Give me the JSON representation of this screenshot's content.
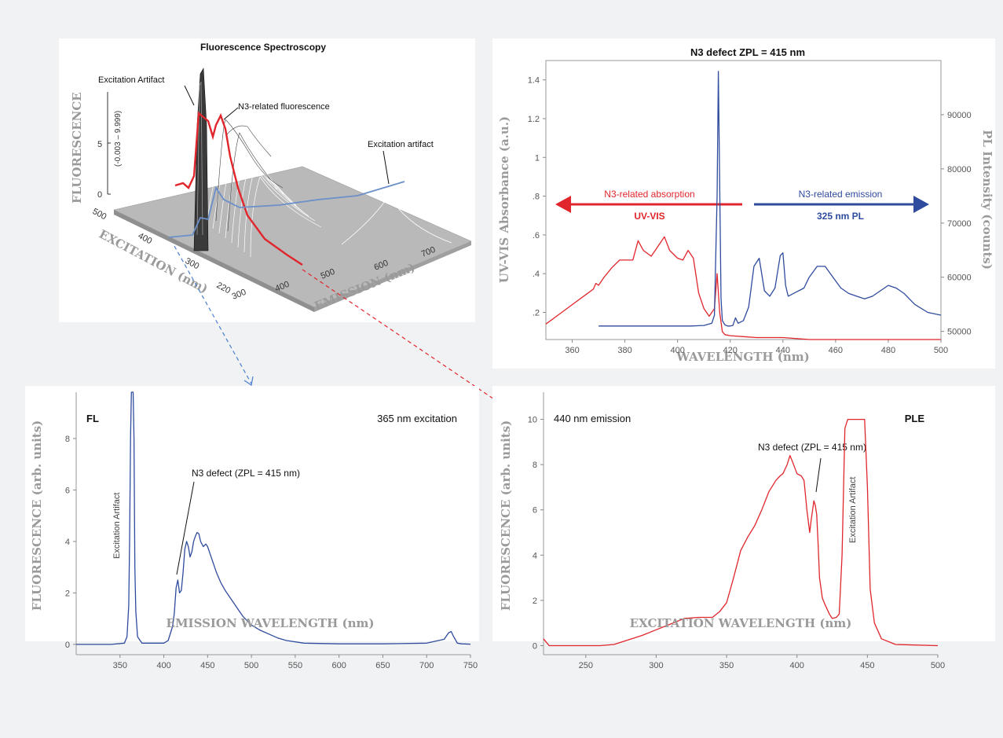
{
  "colors": {
    "red": "#e0262c",
    "blue": "#2f4b9e",
    "grey": "#9a9a9a",
    "arrow_red": "#e0262c",
    "arrow_blue": "#2f4b9e"
  },
  "chart_data": [
    {
      "type": "surface3d",
      "title": "Fluorescence Spectroscopy",
      "zlabel": "FLUORESCENCE",
      "zrange_label": "(-0.003 – 9.999)",
      "zticks": [
        "0",
        "5"
      ],
      "ylabel": "EXCITATION (nm)",
      "yticks": [
        "500",
        "400",
        "300",
        "220"
      ],
      "xlabel": "EMISSION (nm)",
      "xticks": [
        "300",
        "400",
        "500",
        "600",
        "700"
      ],
      "annotations": [
        "Excitation Artifact",
        "N3-related fluorescence",
        "Excitation artifact"
      ]
    },
    {
      "type": "line",
      "title": "N3 defect ZPL = 415 nm",
      "xlabel": "WAVELENGTH (nm)",
      "ylabel": "UV-VIS Absorbance (a.u.)",
      "y2label": "PL Intensity (counts)",
      "xlim": [
        350,
        500
      ],
      "ylim": [
        0.06,
        1.5
      ],
      "y2lim": [
        48500,
        100000
      ],
      "xticks": [
        360,
        380,
        400,
        420,
        440,
        460,
        480,
        500
      ],
      "yticks": [
        ".2",
        ".4",
        ".6",
        ".8",
        "1",
        "1.2",
        "1.4"
      ],
      "ytick_values": [
        0.2,
        0.4,
        0.6,
        0.8,
        1.0,
        1.2,
        1.4
      ],
      "y2ticks": [
        50000,
        60000,
        70000,
        80000,
        90000
      ],
      "left_arrow_label": "N3-related absorption",
      "left_arrow_sublabel": "UV-VIS",
      "right_arrow_label": "N3-related emission",
      "right_arrow_sublabel": "325 nm PL",
      "series": [
        {
          "axis": "left",
          "color": "#e0262c",
          "x": [
            350,
            355,
            360,
            365,
            368,
            369,
            370,
            372,
            375,
            378,
            380,
            383,
            385,
            387,
            390,
            393,
            395,
            397,
            400,
            402,
            404,
            406,
            408,
            410,
            412,
            414,
            415,
            416,
            417,
            418,
            420,
            425,
            430,
            440,
            450,
            460,
            470,
            480,
            490,
            500
          ],
          "y": [
            0.14,
            0.19,
            0.24,
            0.29,
            0.32,
            0.35,
            0.34,
            0.38,
            0.43,
            0.47,
            0.47,
            0.47,
            0.57,
            0.52,
            0.49,
            0.55,
            0.59,
            0.52,
            0.48,
            0.47,
            0.52,
            0.48,
            0.3,
            0.22,
            0.18,
            0.22,
            0.4,
            0.2,
            0.1,
            0.085,
            0.08,
            0.075,
            0.07,
            0.07,
            0.06,
            0.06,
            0.06,
            0.055,
            0.055,
            0.05
          ]
        },
        {
          "axis": "right",
          "color": "#2f4b9e",
          "x": [
            370,
            380,
            390,
            400,
            405,
            410,
            413,
            414,
            415,
            415.5,
            416,
            416.5,
            417,
            418,
            419,
            420,
            421,
            422,
            423,
            425,
            427,
            429,
            431,
            433,
            435,
            437,
            439,
            440,
            441,
            442,
            444,
            446,
            448,
            450,
            453,
            456,
            459,
            462,
            465,
            468,
            471,
            474,
            477,
            480,
            483,
            486,
            490,
            495,
            500
          ],
          "y": [
            51000,
            51000,
            51000,
            51000,
            51000,
            51100,
            51500,
            53000,
            75000,
            98000,
            77000,
            56000,
            52000,
            51200,
            51000,
            51000,
            51100,
            52500,
            51500,
            52000,
            54500,
            62000,
            63500,
            57500,
            56500,
            58000,
            64000,
            64500,
            58500,
            56500,
            57000,
            57500,
            58000,
            60000,
            62000,
            62000,
            60000,
            58000,
            57000,
            56500,
            56000,
            56500,
            57500,
            58500,
            58000,
            57000,
            55000,
            53500,
            53000
          ]
        }
      ]
    },
    {
      "type": "line",
      "xlabel": "EMISSION WAVELENGTH (nm)",
      "ylabel": "FLUORESCENCE (arb. units)",
      "corner_label": "FL",
      "caption": "365 nm excitation",
      "vertical_annotation": "Excitation Artifact",
      "annotation": "N3 defect (ZPL = 415 nm)",
      "xlim": [
        300,
        750
      ],
      "ylim": [
        -0.4,
        9.8
      ],
      "xticks": [
        350,
        400,
        450,
        500,
        550,
        600,
        650,
        700,
        750
      ],
      "yticks": [
        0,
        2,
        4,
        6,
        8
      ],
      "series": [
        {
          "color": "#2f4b9e",
          "x": [
            300,
            340,
            355,
            358,
            360,
            361,
            362,
            363,
            364,
            365,
            366,
            367,
            368,
            370,
            375,
            400,
            405,
            410,
            412,
            414,
            416,
            418,
            420,
            422,
            424,
            426,
            428,
            430,
            432,
            434,
            436,
            438,
            440,
            442,
            445,
            448,
            450,
            455,
            460,
            465,
            470,
            480,
            490,
            500,
            510,
            520,
            530,
            540,
            560,
            600,
            650,
            700,
            720,
            725,
            728,
            730,
            735,
            740,
            750
          ],
          "y": [
            0,
            0,
            0.05,
            0.3,
            1.5,
            4,
            8,
            12,
            11,
            9.8,
            8,
            3,
            1.3,
            0.3,
            0.05,
            0.05,
            0.15,
            0.7,
            1.2,
            2.2,
            2.5,
            2.0,
            2.1,
            2.8,
            3.7,
            4.0,
            3.8,
            3.4,
            3.6,
            4.0,
            4.2,
            4.35,
            4.3,
            4.0,
            3.8,
            3.9,
            3.8,
            3.3,
            2.8,
            2.4,
            2.1,
            1.6,
            1.1,
            0.75,
            0.55,
            0.4,
            0.25,
            0.15,
            0.05,
            0.02,
            0.02,
            0.05,
            0.2,
            0.45,
            0.5,
            0.35,
            0.05,
            0.02,
            0.01
          ]
        }
      ]
    },
    {
      "type": "line",
      "xlabel": "EXCITATION WAVELENGTH (nm)",
      "ylabel": "FLUORESCENCE (arb. units)",
      "corner_label": "PLE",
      "caption": "440 nm emission",
      "vertical_annotation": "Excitation Artifact",
      "annotation": "N3 defect (ZPL = 415 nm)",
      "xlim": [
        220,
        500
      ],
      "ylim": [
        -0.4,
        11.2
      ],
      "xticks": [
        250,
        300,
        350,
        400,
        450,
        500
      ],
      "yticks": [
        0,
        2,
        4,
        6,
        8,
        10
      ],
      "series": [
        {
          "color": "#e0262c",
          "x": [
            220,
            222,
            224,
            230,
            240,
            260,
            270,
            280,
            290,
            300,
            310,
            320,
            330,
            340,
            345,
            350,
            355,
            360,
            365,
            370,
            375,
            380,
            385,
            388,
            390,
            393,
            395,
            397,
            400,
            403,
            405,
            407,
            409,
            410,
            412,
            413,
            414,
            415,
            416,
            418,
            420,
            423,
            425,
            428,
            430,
            432,
            434,
            436,
            440,
            445,
            448,
            450,
            452,
            455,
            460,
            470,
            500
          ],
          "y": [
            0.3,
            0.15,
            0,
            0,
            0,
            0,
            0.05,
            0.25,
            0.45,
            0.7,
            0.95,
            1.2,
            1.25,
            1.25,
            1.5,
            1.9,
            3.0,
            4.2,
            4.8,
            5.3,
            6.0,
            6.8,
            7.3,
            7.5,
            7.6,
            8.0,
            8.4,
            8.1,
            7.6,
            7.5,
            7.3,
            6.0,
            5.0,
            5.5,
            6.4,
            6.2,
            5.8,
            4.5,
            3.0,
            2.1,
            1.8,
            1.4,
            1.2,
            1.25,
            1.4,
            4,
            9.6,
            10,
            10,
            10,
            10,
            7,
            2.5,
            1.0,
            0.3,
            0.05,
            0
          ]
        }
      ]
    }
  ]
}
